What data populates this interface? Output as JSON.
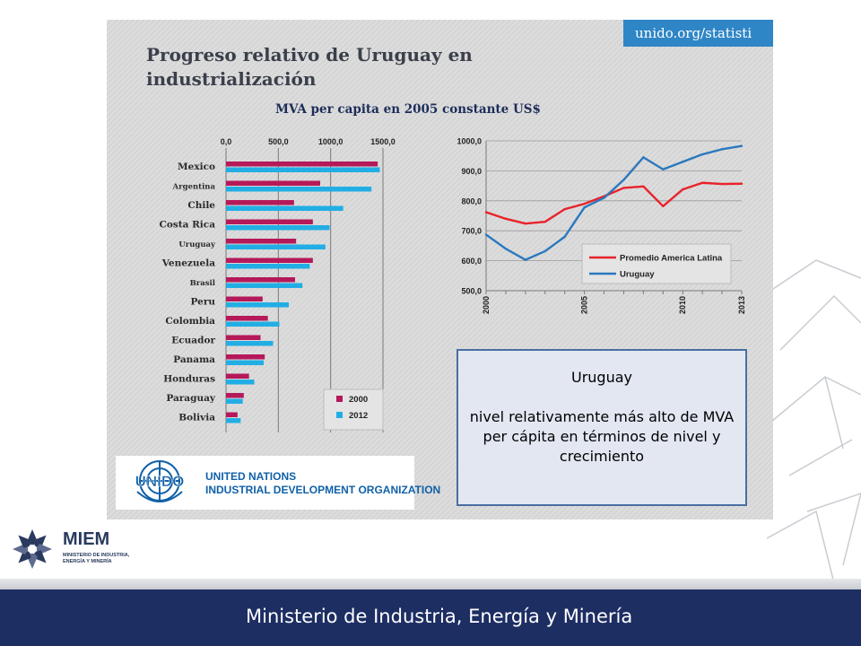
{
  "source_tag": "unido.org/statisti",
  "title": "Progreso relativo de Uruguay en industrialización",
  "subtitle": "MVA per capita en 2005 constante  US$",
  "chart_data": [
    {
      "type": "bar",
      "orientation": "horizontal",
      "categories": [
        "Mexico",
        "Argentina",
        "Chile",
        "Costa Rica",
        "Uruguay",
        "Venezuela",
        "Brasil",
        "Peru",
        "Colombia",
        "Ecuador",
        "Panama",
        "Honduras",
        "Paraguay",
        "Bolivia"
      ],
      "series": [
        {
          "name": "2000",
          "color": "#b5195a",
          "values": [
            1450,
            900,
            650,
            830,
            670,
            830,
            660,
            350,
            400,
            330,
            370,
            220,
            170,
            110
          ]
        },
        {
          "name": "2012",
          "color": "#22aee4",
          "values": [
            1470,
            1390,
            1120,
            990,
            950,
            800,
            730,
            600,
            510,
            450,
            360,
            270,
            160,
            140
          ]
        }
      ],
      "xlim": [
        0,
        1500
      ],
      "x_ticks": [
        "0,0",
        "500,0",
        "1000,0",
        "1500,0"
      ],
      "legend": "bottom-right"
    },
    {
      "type": "line",
      "x": [
        2000,
        2001,
        2002,
        2003,
        2004,
        2005,
        2006,
        2007,
        2008,
        2009,
        2010,
        2011,
        2012,
        2013
      ],
      "x_ticks": [
        "2000",
        "2005",
        "2010",
        "2013"
      ],
      "y_ticks": [
        "1000,0",
        "900,0",
        "800,0",
        "700,0",
        "600,0",
        "500,0"
      ],
      "ylim": [
        500,
        1000
      ],
      "series": [
        {
          "name": "Promedio America Latina",
          "color": "#e8232a",
          "values": [
            762,
            740,
            724,
            730,
            772,
            790,
            815,
            843,
            848,
            782,
            838,
            860,
            856,
            857
          ]
        },
        {
          "name": "Uruguay",
          "color": "#2b78bd",
          "values": [
            687,
            640,
            603,
            632,
            680,
            778,
            810,
            870,
            945,
            905,
            930,
            955,
            972,
            983
          ]
        }
      ],
      "legend": "bottom-right"
    }
  ],
  "unido": {
    "mark": "UNIDO",
    "line1": "UNITED NATIONS",
    "line2": "INDUSTRIAL DEVELOPMENT ORGANIZATION"
  },
  "callout": {
    "title": "Uruguay",
    "body": "nivel relativamente más alto de MVA per cápita en términos de nivel y crecimiento"
  },
  "miem": {
    "name": "MIEM",
    "sub1": "MINISTERIO DE INDUSTRIA,",
    "sub2": "ENERGÍA Y MINERÍA"
  },
  "footer": "Ministerio de Industria, Energía y Minería",
  "colors": {
    "navy": "#1d2e63",
    "panel_bg": "#dcdcdc",
    "series_2000": "#b5195a",
    "series_2012": "#22aee4",
    "latin_america": "#e8232a",
    "uruguay": "#2b78bd"
  }
}
